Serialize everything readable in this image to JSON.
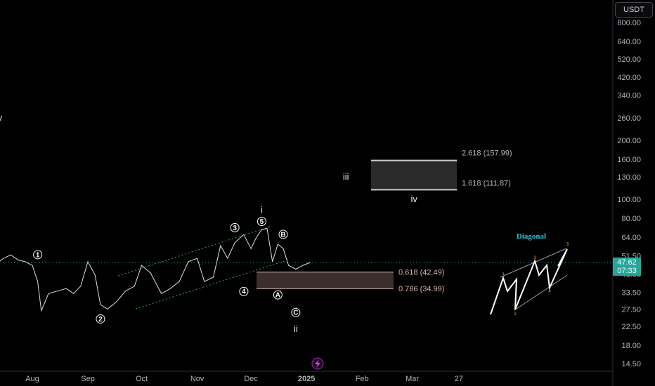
{
  "currency_button": "USDT",
  "price_tag": {
    "price": "47.62",
    "countdown": "07:33"
  },
  "chart_data": {
    "type": "line",
    "title": "",
    "x_ticks": [
      "Aug",
      "Sep",
      "Oct",
      "Nov",
      "Dec",
      "2025",
      "Feb",
      "Mar",
      "27"
    ],
    "y_scale": "log",
    "y_ticks": [
      800,
      640,
      520,
      420,
      340,
      260,
      200,
      160,
      130,
      100,
      80,
      64,
      51.5,
      41.5,
      33.5,
      27.5,
      22.5,
      18,
      14.5
    ],
    "y_tick_labels": [
      "800.00",
      "640.00",
      "520.00",
      "420.00",
      "340.00",
      "260.00",
      "200.00",
      "160.00",
      "130.00",
      "100.00",
      "80.00",
      "64.00",
      "51.50",
      "41.50",
      "33.50",
      "27.50",
      "22.50",
      "18.00",
      "14.50"
    ],
    "series": [
      {
        "x": [
          "Jul 12",
          "Jul 16",
          "Jul 20",
          "Jul 24",
          "Jul 28",
          "Aug 1",
          "Aug 4",
          "Aug 6",
          "Aug 10",
          "Aug 15",
          "Aug 20",
          "Aug 24",
          "Aug 28",
          "Sep 1",
          "Sep 5",
          "Sep 8",
          "Sep 12",
          "Sep 17",
          "Sep 22",
          "Sep 27",
          "Oct 1",
          "Oct 6",
          "Oct 12",
          "Oct 17",
          "Oct 22",
          "Oct 27",
          "Nov 1",
          "Nov 5",
          "Nov 10",
          "Nov 14",
          "Nov 18",
          "Nov 22",
          "Nov 27",
          "Dec 1",
          "Dec 4",
          "Dec 7",
          "Dec 10",
          "Dec 13",
          "Dec 16",
          "Dec 19",
          "Dec 22",
          "Dec 26",
          "Dec 30",
          "Jan 3"
        ],
        "values": [
          47,
          50,
          52,
          49,
          48,
          46,
          38,
          27,
          33,
          34,
          35,
          33,
          36,
          48,
          41,
          29,
          27.5,
          30,
          34,
          36,
          46,
          42,
          33,
          35,
          38,
          48,
          50,
          38,
          40,
          58,
          50,
          60,
          66,
          56,
          64,
          70,
          71,
          48,
          59,
          56,
          46,
          44,
          46,
          47.6
        ]
      }
    ],
    "current_price": 47.62,
    "elliott_wave_labels": [
      {
        "label": "1",
        "style": "circled",
        "value": 48
      },
      {
        "label": "2",
        "style": "circled",
        "value": 27.5
      },
      {
        "label": "3",
        "style": "circled",
        "value": 66
      },
      {
        "label": "4",
        "style": "circled",
        "value": 38
      },
      {
        "label": "5",
        "style": "circled",
        "value": 71
      },
      {
        "label": "A",
        "style": "circled",
        "value": 39
      },
      {
        "label": "B",
        "style": "circled",
        "value": 59
      },
      {
        "label": "C",
        "style": "circled",
        "value": 35
      },
      {
        "label": "i",
        "style": "plain",
        "value": 71
      },
      {
        "label": "ii",
        "style": "plain",
        "value": 35
      },
      {
        "label": "iii",
        "style": "plain",
        "value": 130
      },
      {
        "label": "iv",
        "style": "plain",
        "value": 100
      },
      {
        "label": "v",
        "style": "plain",
        "value": 260
      }
    ],
    "fib_retracement": [
      {
        "label": "0.618 (42.49)",
        "value": 42.49
      },
      {
        "label": "0.786 (34.99)",
        "value": 34.99
      }
    ],
    "fib_extension": [
      {
        "label": "2.618 (157.99)",
        "value": 157.99
      },
      {
        "label": "1.618 (111.87)",
        "value": 111.87
      }
    ],
    "diagonal_inset": {
      "title": "Diagonal",
      "points": [
        "1",
        "2",
        "3",
        "4",
        "5"
      ]
    },
    "legend": "none",
    "grid": false,
    "colors": {
      "price_line": "#e0e0e0",
      "current_price_bg": "#26a69a",
      "fib_box": "#3a2f2d",
      "fib_line": "#d9b9b0",
      "channel": "#26a69a",
      "diagonal_title": "#26c6da",
      "diagonal_points": "#f5a623"
    }
  }
}
